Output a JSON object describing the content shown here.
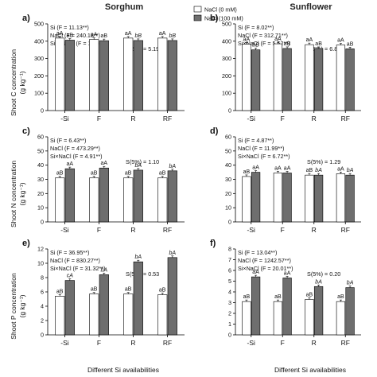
{
  "figure": {
    "column_titles": [
      "Sorghum",
      "Sunflower"
    ],
    "row_ylabels": [
      [
        "Shoot C concentration",
        "(g kg⁻¹)"
      ],
      [
        "Shoot N concentration",
        "(g kg⁻¹)"
      ],
      [
        "Shoot P concentration",
        "(g kg⁻¹)"
      ]
    ],
    "xlabel": "Different Si availabilities",
    "legend": [
      "NaCl (0 mM)",
      "NaCl (100 mM)"
    ],
    "colors": {
      "control": "#ffffff",
      "salt": "#6e6e6e",
      "axis": "#000000"
    }
  },
  "chart_data": [
    {
      "type": "bar",
      "panel": "a)",
      "grid": false,
      "categories": [
        "-Si",
        "F",
        "R",
        "RF"
      ],
      "ylim": [
        0,
        500
      ],
      "yticks": [
        0,
        100,
        200,
        300,
        400,
        500
      ],
      "stats": [
        "Si (F = 11.13**)",
        "NaCl (F = 240.18**)",
        "Si × NaCl (F = 16.10*)"
      ],
      "lsd": "S(5%) = 5.19",
      "series": [
        {
          "name": "NaCl (0 mM)",
          "values": [
            418,
            410,
            418,
            418
          ],
          "labels": [
            "aA",
            "aA",
            "aA",
            "aA"
          ]
        },
        {
          "name": "NaCl (100 mM)",
          "values": [
            406,
            403,
            404,
            404
          ],
          "labels": [
            "aB",
            "aB",
            "bB",
            "bB"
          ]
        }
      ]
    },
    {
      "type": "bar",
      "panel": "b)",
      "grid": false,
      "categories": [
        "-Si",
        "F",
        "R",
        "RF"
      ],
      "ylim": [
        0,
        500
      ],
      "yticks": [
        0,
        100,
        200,
        300,
        400,
        500
      ],
      "stats": [
        "Si (F = 8.02**)",
        "NaCl (F = 312.71**)",
        "Si×NaCl (F = 5.52**)"
      ],
      "lsd": "S(5%) = 6.83",
      "series": [
        {
          "name": "NaCl (0 mM)",
          "values": [
            383,
            385,
            380,
            378
          ],
          "labels": [
            "aA",
            "aA",
            "aA",
            "aA"
          ]
        },
        {
          "name": "NaCl (100 mM)",
          "values": [
            350,
            358,
            358,
            356
          ],
          "labels": [
            "bB",
            "aB",
            "aB",
            "aB"
          ]
        }
      ]
    },
    {
      "type": "bar",
      "panel": "c)",
      "grid": false,
      "categories": [
        "-Si",
        "F",
        "R",
        "RF"
      ],
      "ylim": [
        0,
        60
      ],
      "yticks": [
        0,
        10,
        20,
        30,
        40,
        50,
        60
      ],
      "stats": [
        "Si (F = 6.43**)",
        "NaCl (F = 473.29**)",
        "Si×NaCl (F = 4.91**)"
      ],
      "lsd": "S(5%) = 1.10",
      "series": [
        {
          "name": "NaCl (0 mM)",
          "values": [
            31,
            31,
            31,
            31
          ],
          "labels": [
            "aB",
            "aB",
            "aB",
            "aB"
          ]
        },
        {
          "name": "NaCl (100 mM)",
          "values": [
            37.5,
            38,
            36.5,
            36
          ],
          "labels": [
            "aA",
            "aA",
            "bA",
            "bA"
          ]
        }
      ]
    },
    {
      "type": "bar",
      "panel": "d)",
      "grid": false,
      "categories": [
        "-Si",
        "F",
        "R",
        "RF"
      ],
      "ylim": [
        0,
        60
      ],
      "yticks": [
        0,
        10,
        20,
        30,
        40,
        50,
        60
      ],
      "stats": [
        "Si (F = 4.87**)",
        "NaCl (F = 11.99**)",
        "Si×NaCl (F = 6.72**)"
      ],
      "lsd": "S(5%) = 1.29",
      "series": [
        {
          "name": "NaCl (0 mM)",
          "values": [
            32,
            34.5,
            33,
            34
          ],
          "labels": [
            "aB",
            "aA",
            "aB",
            "aA"
          ]
        },
        {
          "name": "NaCl (100 mM)",
          "values": [
            35,
            34.5,
            33,
            33
          ],
          "labels": [
            "aA",
            "aA",
            "bA",
            "bA"
          ]
        }
      ]
    },
    {
      "type": "bar",
      "panel": "e)",
      "grid": false,
      "categories": [
        "-Si",
        "F",
        "R",
        "RF"
      ],
      "ylim": [
        0,
        12
      ],
      "yticks": [
        0,
        2,
        4,
        6,
        8,
        10,
        12
      ],
      "stats": [
        "Si (F = 36.95**)",
        "NaCl (F = 830.27**)",
        "Si×NaCl (F = 31.32**)"
      ],
      "lsd": "S(5%) = 0.53",
      "series": [
        {
          "name": "NaCl (0 mM)",
          "values": [
            5.4,
            5.7,
            5.7,
            5.6
          ],
          "labels": [
            "aB",
            "aB",
            "aB",
            "aB"
          ]
        },
        {
          "name": "NaCl (100 mM)",
          "values": [
            7.6,
            8.4,
            10.2,
            10.8
          ],
          "labels": [
            "cA",
            "bA",
            "bA",
            "bA"
          ]
        }
      ]
    },
    {
      "type": "bar",
      "panel": "f)",
      "grid": false,
      "categories": [
        "-Si",
        "F",
        "R",
        "RF"
      ],
      "ylim": [
        0,
        8
      ],
      "yticks": [
        0,
        1,
        2,
        3,
        4,
        5,
        6,
        7,
        8
      ],
      "stats": [
        "Si (F = 13.04**)",
        "NaCl (F = 1242.57**)",
        "Si×NaCl (F = 20.01**)"
      ],
      "lsd": "S(5%) = 0.20",
      "series": [
        {
          "name": "NaCl (0 mM)",
          "values": [
            3.1,
            3.1,
            3.3,
            3.1
          ],
          "labels": [
            "aB",
            "aB",
            "aB",
            "aB"
          ]
        },
        {
          "name": "NaCl (100 mM)",
          "values": [
            5.4,
            5.3,
            4.5,
            4.4
          ],
          "labels": [
            "aA",
            "aA",
            "bA",
            "bA"
          ]
        }
      ]
    }
  ]
}
